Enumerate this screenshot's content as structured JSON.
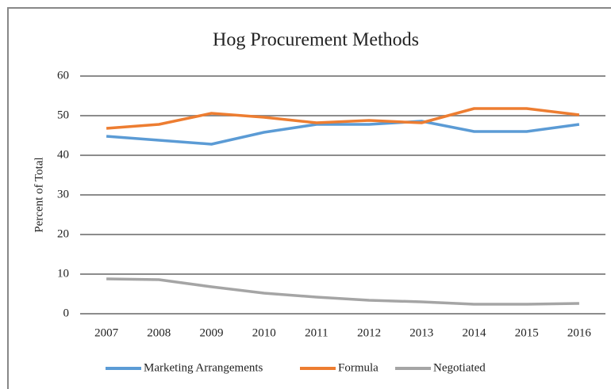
{
  "chart_data": {
    "type": "line",
    "title": "Hog Procurement Methods",
    "y_label": "Percent of Total",
    "categories": [
      "2007",
      "2008",
      "2009",
      "2010",
      "2011",
      "2012",
      "2013",
      "2014",
      "2015",
      "2016"
    ],
    "series": [
      {
        "name": "Marketing Arrangements",
        "color": "#5b9bd5",
        "values": [
          44.8,
          43.8,
          42.8,
          45.8,
          47.8,
          47.8,
          48.6,
          46,
          46,
          47.8
        ]
      },
      {
        "name": "Formula",
        "color": "#ed7d31",
        "values": [
          46.8,
          47.8,
          50.6,
          49.6,
          48.2,
          48.8,
          48.2,
          51.8,
          51.8,
          50.2
        ]
      },
      {
        "name": "Negotiated",
        "color": "#a5a5a5",
        "values": [
          8.8,
          8.6,
          6.8,
          5.2,
          4.2,
          3.4,
          3,
          2.4,
          2.4,
          2.6
        ]
      }
    ],
    "ylim": [
      0,
      60
    ],
    "yticks": [
      0,
      10,
      20,
      30,
      40,
      50,
      60
    ],
    "grid": true,
    "legend": "bottom"
  }
}
